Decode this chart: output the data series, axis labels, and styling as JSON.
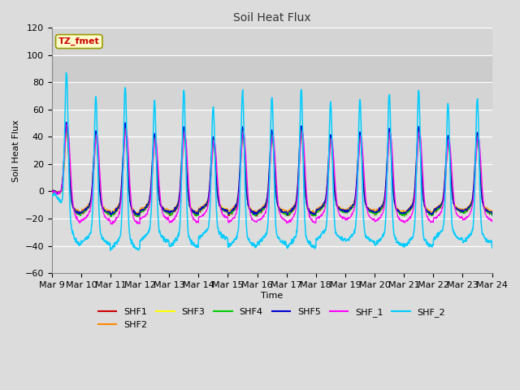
{
  "title": "Soil Heat Flux",
  "xlabel": "Time",
  "ylabel": "Soil Heat Flux",
  "ylim": [
    -60,
    120
  ],
  "xlim": [
    0,
    360
  ],
  "x_tick_labels": [
    "Mar 9",
    "Mar 10",
    "Mar 11",
    "Mar 12",
    "Mar 13",
    "Mar 14",
    "Mar 15",
    "Mar 16",
    "Mar 17",
    "Mar 18",
    "Mar 19",
    "Mar 20",
    "Mar 21",
    "Mar 22",
    "Mar 23",
    "Mar 24"
  ],
  "x_tick_positions": [
    0,
    24,
    48,
    72,
    96,
    120,
    144,
    168,
    192,
    216,
    240,
    264,
    288,
    312,
    336,
    360
  ],
  "y_ticks": [
    -60,
    -40,
    -20,
    0,
    20,
    40,
    60,
    80,
    100,
    120
  ],
  "series_colors": {
    "SHF1": "#cc0000",
    "SHF2": "#ff8800",
    "SHF3": "#ffff00",
    "SHF4": "#00cc00",
    "SHF5": "#0000cc",
    "SHF_1": "#ff00ff",
    "SHF_2": "#00ccff"
  },
  "annotation_text": "TZ_fmet",
  "annotation_color": "#cc0000",
  "annotation_bg": "#ffffcc",
  "shaded_region_light": [
    60,
    120
  ],
  "shaded_region_dark": [
    80,
    100
  ],
  "background_color": "#dcdcdc",
  "grid_color": "#ffffff"
}
